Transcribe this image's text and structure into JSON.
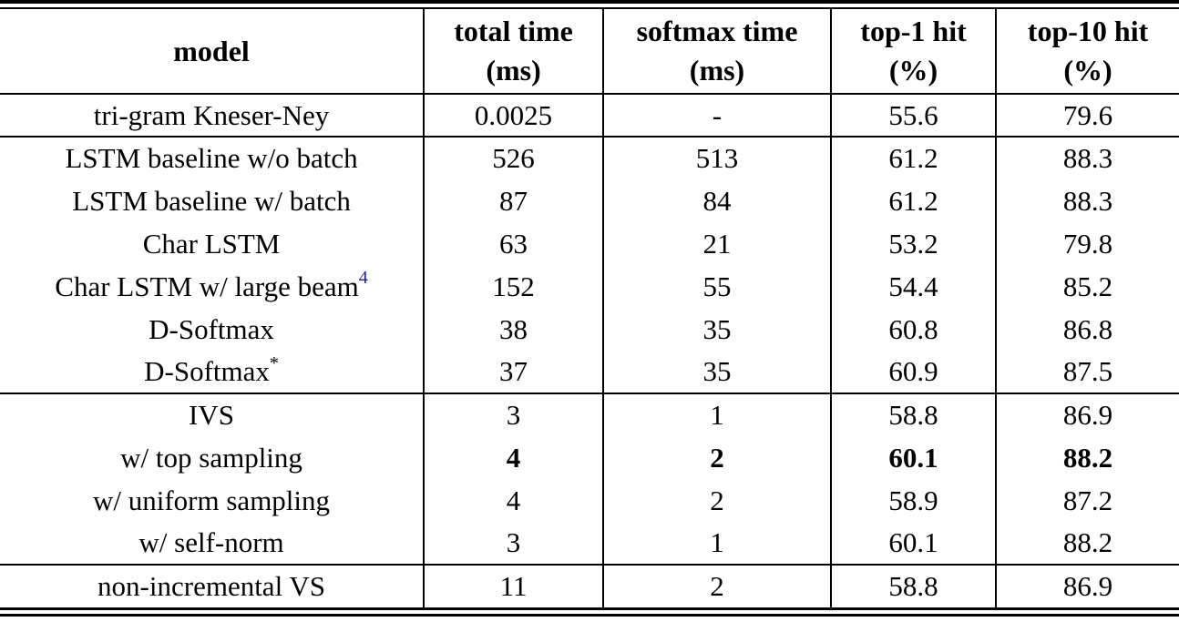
{
  "colors": {
    "text": "#000000",
    "background": "#ffffff",
    "footnote_link": "#22229a",
    "rule": "#000000"
  },
  "table": {
    "columns": [
      {
        "title": "model",
        "unit": ""
      },
      {
        "title": "total time",
        "unit": "(ms)"
      },
      {
        "title": "softmax time",
        "unit": "(ms)"
      },
      {
        "title": "top-1 hit",
        "unit": "(%)"
      },
      {
        "title": "top-10 hit",
        "unit": "(%)"
      }
    ],
    "sections": [
      {
        "rows": [
          {
            "model": "tri-gram Kneser-Ney",
            "values": [
              "0.0025",
              "-",
              "55.6",
              "79.6"
            ]
          }
        ]
      },
      {
        "rows": [
          {
            "model": "LSTM baseline w/o batch",
            "values": [
              "526",
              "513",
              "61.2",
              "88.3"
            ]
          },
          {
            "model": "LSTM baseline w/ batch",
            "values": [
              "87",
              "84",
              "61.2",
              "88.3"
            ]
          },
          {
            "model": "Char LSTM",
            "values": [
              "63",
              "21",
              "53.2",
              "79.8"
            ]
          },
          {
            "model": "Char LSTM w/ large beam",
            "model_sup": "4",
            "model_sup_is_link": true,
            "values": [
              "152",
              "55",
              "54.4",
              "85.2"
            ]
          },
          {
            "model": "D-Softmax",
            "values": [
              "38",
              "35",
              "60.8",
              "86.8"
            ]
          },
          {
            "model": "D-Softmax",
            "model_sup": "*",
            "values": [
              "37",
              "35",
              "60.9",
              "87.5"
            ]
          }
        ]
      },
      {
        "rows": [
          {
            "model": "IVS",
            "values": [
              "3",
              "1",
              "58.8",
              "86.9"
            ]
          },
          {
            "model": "w/ top sampling",
            "values": [
              "4",
              "2",
              "60.1",
              "88.2"
            ],
            "bold_values": true
          },
          {
            "model": "w/ uniform sampling",
            "values": [
              "4",
              "2",
              "58.9",
              "87.2"
            ]
          },
          {
            "model": "w/ self-norm",
            "values": [
              "3",
              "1",
              "60.1",
              "88.2"
            ]
          }
        ]
      },
      {
        "rows": [
          {
            "model": "non-incremental VS",
            "values": [
              "11",
              "2",
              "58.8",
              "86.9"
            ]
          }
        ]
      }
    ]
  }
}
